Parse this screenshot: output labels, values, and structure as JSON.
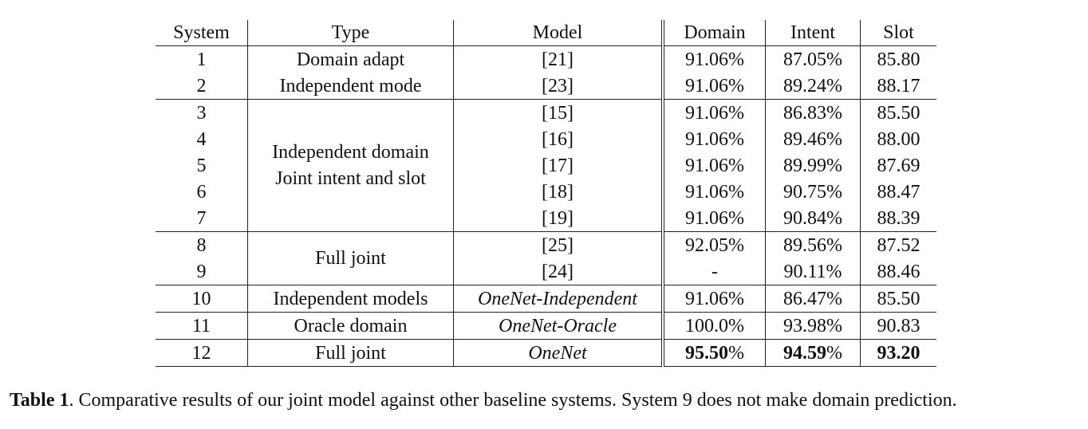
{
  "table": {
    "headers": [
      "System",
      "Type",
      "Model",
      "Domain",
      "Intent",
      "Slot"
    ],
    "groups": [
      {
        "type_lines": [
          "Domain adapt",
          "Independent mode"
        ],
        "rows": [
          {
            "system": "1",
            "type": "Domain adapt",
            "model": "[21]",
            "domain": "91.06%",
            "intent": "87.05%",
            "slot": "85.80"
          },
          {
            "system": "2",
            "type": "Independent mode",
            "model": "[23]",
            "domain": "91.06%",
            "intent": "89.24%",
            "slot": "88.17"
          }
        ]
      },
      {
        "type_lines": [
          "Independent domain",
          "Joint intent and slot"
        ],
        "rows": [
          {
            "system": "3",
            "model": "[15]",
            "domain": "91.06%",
            "intent": "86.83%",
            "slot": "85.50"
          },
          {
            "system": "4",
            "model": "[16]",
            "domain": "91.06%",
            "intent": "89.46%",
            "slot": "88.00"
          },
          {
            "system": "5",
            "model": "[17]",
            "domain": "91.06%",
            "intent": "89.99%",
            "slot": "87.69"
          },
          {
            "system": "6",
            "model": "[18]",
            "domain": "91.06%",
            "intent": "90.75%",
            "slot": "88.47"
          },
          {
            "system": "7",
            "model": "[19]",
            "domain": "91.06%",
            "intent": "90.84%",
            "slot": "88.39"
          }
        ]
      },
      {
        "type_lines": [
          "Full joint"
        ],
        "rows": [
          {
            "system": "8",
            "model": "[25]",
            "domain": "92.05%",
            "intent": "89.56%",
            "slot": "87.52"
          },
          {
            "system": "9",
            "model": "[24]",
            "domain": "-",
            "intent": "90.11%",
            "slot": "88.46"
          }
        ]
      },
      {
        "rows": [
          {
            "system": "10",
            "type": "Independent models",
            "model": "OneNet-Independent",
            "domain": "91.06%",
            "intent": "86.47%",
            "slot": "85.50"
          }
        ]
      },
      {
        "rows": [
          {
            "system": "11",
            "type": "Oracle domain",
            "model": "OneNet-Oracle",
            "domain": "100.0%",
            "intent": "93.98%",
            "slot": "90.83"
          }
        ]
      },
      {
        "rows": [
          {
            "system": "12",
            "type": "Full joint",
            "model": "OneNet",
            "domain_num": "95.50",
            "intent_num": "94.59",
            "pct": "%",
            "slot": "93.20"
          }
        ]
      }
    ]
  },
  "caption": {
    "label": "Table 1",
    "text": ". Comparative results of our joint model against other baseline systems. System 9 does not make domain prediction."
  }
}
